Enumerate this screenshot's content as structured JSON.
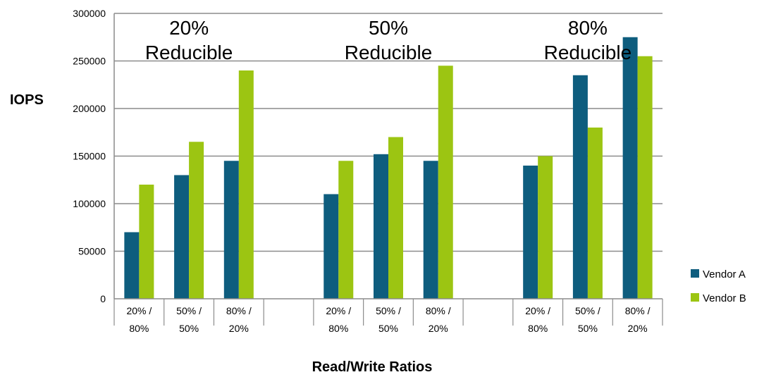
{
  "chart_data": {
    "type": "bar",
    "title": "",
    "xlabel": "Read/Write Ratios",
    "ylabel": "IOPS",
    "ylim": [
      0,
      300000
    ],
    "yticks": [
      "0",
      "50000",
      "100000",
      "150000",
      "200000",
      "250000",
      "300000"
    ],
    "grid": true,
    "legend_position": "bottom-right",
    "colors": {
      "Vendor A": "#0e5d7e",
      "Vendor B": "#9cc512"
    },
    "groups": [
      {
        "label_line1": "20%",
        "label_line2": "Reducible",
        "categories": [
          {
            "line1": "20% /",
            "line2": "80%"
          },
          {
            "line1": "50% /",
            "line2": "50%"
          },
          {
            "line1": "80% /",
            "line2": "20%"
          }
        ],
        "series": [
          {
            "name": "Vendor A",
            "values": [
              70000,
              130000,
              145000
            ]
          },
          {
            "name": "Vendor B",
            "values": [
              120000,
              165000,
              240000
            ]
          }
        ]
      },
      {
        "label_line1": "50%",
        "label_line2": "Reducible",
        "categories": [
          {
            "line1": "20% /",
            "line2": "80%"
          },
          {
            "line1": "50% /",
            "line2": "50%"
          },
          {
            "line1": "80% /",
            "line2": "20%"
          }
        ],
        "series": [
          {
            "name": "Vendor A",
            "values": [
              110000,
              152000,
              145000
            ]
          },
          {
            "name": "Vendor B",
            "values": [
              145000,
              170000,
              245000
            ]
          }
        ]
      },
      {
        "label_line1": "80%",
        "label_line2": "Reducible",
        "categories": [
          {
            "line1": "20% /",
            "line2": "80%"
          },
          {
            "line1": "50% /",
            "line2": "50%"
          },
          {
            "line1": "80% /",
            "line2": "20%"
          }
        ],
        "series": [
          {
            "name": "Vendor A",
            "values": [
              140000,
              235000,
              275000
            ]
          },
          {
            "name": "Vendor B",
            "values": [
              150000,
              180000,
              255000
            ]
          }
        ]
      }
    ],
    "legend": [
      "Vendor A",
      "Vendor B"
    ]
  }
}
